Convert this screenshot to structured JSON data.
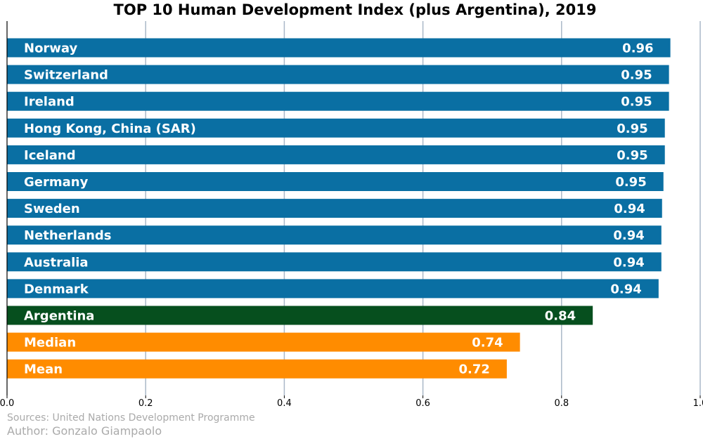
{
  "chart_data": {
    "type": "bar",
    "orientation": "horizontal",
    "title": "TOP 10 Human Development Index (plus Argentina), 2019",
    "categories": [
      "Norway",
      "Switzerland",
      "Ireland",
      "Hong Kong, China (SAR)",
      "Iceland",
      "Germany",
      "Sweden",
      "Netherlands",
      "Australia",
      "Denmark",
      "Argentina",
      "Median",
      "Mean"
    ],
    "values": [
      0.957,
      0.955,
      0.955,
      0.949,
      0.949,
      0.947,
      0.945,
      0.944,
      0.944,
      0.94,
      0.845,
      0.74,
      0.721
    ],
    "value_labels": [
      "0.96",
      "0.95",
      "0.95",
      "0.95",
      "0.95",
      "0.95",
      "0.94",
      "0.94",
      "0.94",
      "0.94",
      "0.84",
      "0.74",
      "0.72"
    ],
    "bar_colors": [
      "#0a6fa3",
      "#0a6fa3",
      "#0a6fa3",
      "#0a6fa3",
      "#0a6fa3",
      "#0a6fa3",
      "#0a6fa3",
      "#0a6fa3",
      "#0a6fa3",
      "#0a6fa3",
      "#064f1e",
      "#ff8c00",
      "#ff8c00"
    ],
    "xlim": [
      0,
      1.0
    ],
    "xticks": [
      0.0,
      0.2,
      0.4,
      0.6,
      0.8,
      1.0
    ],
    "xtick_labels": [
      "0.0",
      "0.2",
      "0.4",
      "0.6",
      "0.8",
      "1.0"
    ],
    "xlabel": "",
    "ylabel": "",
    "grid": "vertical",
    "grid_color": "#aab8c8",
    "label_color": "#ffffff"
  },
  "footer": {
    "source": "Sources: United Nations Development Programme",
    "author": "Author: Gonzalo Giampaolo"
  }
}
